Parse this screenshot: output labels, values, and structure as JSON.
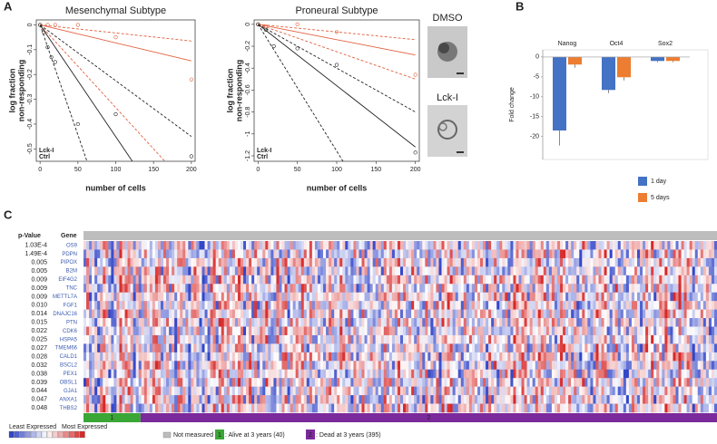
{
  "panels": [
    "A",
    "B",
    "C"
  ],
  "chart_data": [
    {
      "type": "line",
      "title": "Mesenchymal Subtype",
      "xlabel": "number of cells",
      "ylabel": [
        "log fraction",
        "non-responding"
      ],
      "xlim": [
        -5,
        205
      ],
      "ylim": [
        -0.55,
        0.02
      ],
      "xticks": [
        0,
        50,
        100,
        150,
        200
      ],
      "yticks": [
        0,
        -0.1,
        -0.2,
        -0.3,
        -0.4,
        -0.5
      ],
      "series": [
        {
          "name": "Lck-I",
          "color": "#e2603f",
          "points": {
            "x": [
              0,
              10,
              20,
              50,
              100,
              200
            ],
            "values": [
              0,
              0,
              0,
              0,
              -0.05,
              -0.22
            ]
          },
          "fits": [
            {
              "dash": false,
              "x": [
                0,
                200
              ],
              "values": [
                0,
                -0.145
              ]
            },
            {
              "dash": true,
              "x": [
                0,
                200
              ],
              "values": [
                0,
                -0.065
              ]
            },
            {
              "dash": true,
              "x": [
                0,
                165
              ],
              "values": [
                0,
                -0.55
              ]
            }
          ]
        },
        {
          "name": "Ctrl",
          "color": "#222222",
          "points": {
            "x": [
              0,
              5,
              10,
              15,
              20,
              50,
              100,
              200
            ],
            "values": [
              0,
              -0.03,
              -0.09,
              -0.13,
              -0.15,
              -0.4,
              -0.36,
              -0.53
            ]
          },
          "fits": [
            {
              "dash": false,
              "x": [
                0,
                122
              ],
              "values": [
                0,
                -0.55
              ]
            },
            {
              "dash": true,
              "x": [
                0,
                200
              ],
              "values": [
                0,
                -0.45
              ]
            },
            {
              "dash": true,
              "x": [
                0,
                62
              ],
              "values": [
                0,
                -0.55
              ]
            }
          ]
        }
      ]
    },
    {
      "type": "line",
      "title": "Proneural Subtype",
      "xlabel": "number of cells",
      "ylabel": [
        "log fraction",
        "non-responding"
      ],
      "xlim": [
        -5,
        205
      ],
      "ylim": [
        -1.25,
        0.04
      ],
      "xticks": [
        0,
        50,
        100,
        150,
        200
      ],
      "yticks": [
        0,
        -0.2,
        -0.4,
        -0.6,
        -0.8,
        -1,
        -1.2
      ],
      "series": [
        {
          "name": "Lck-I",
          "color": "#e2603f",
          "points": {
            "x": [
              0,
              10,
              50,
              100,
              200
            ],
            "values": [
              0,
              -0.02,
              0,
              -0.07,
              -0.46
            ]
          },
          "fits": [
            {
              "dash": false,
              "x": [
                0,
                200
              ],
              "values": [
                0,
                -0.28
              ]
            },
            {
              "dash": true,
              "x": [
                0,
                200
              ],
              "values": [
                0,
                -0.14
              ]
            },
            {
              "dash": true,
              "x": [
                0,
                200
              ],
              "values": [
                0,
                -0.5
              ]
            }
          ]
        },
        {
          "name": "Ctrl",
          "color": "#222222",
          "points": {
            "x": [
              0,
              10,
              20,
              50,
              100,
              200
            ],
            "values": [
              0,
              -0.05,
              -0.2,
              -0.22,
              -0.37,
              -1.17
            ]
          },
          "fits": [
            {
              "dash": false,
              "x": [
                0,
                200
              ],
              "values": [
                0,
                -1.12
              ]
            },
            {
              "dash": true,
              "x": [
                0,
                200
              ],
              "values": [
                0,
                -0.8
              ]
            },
            {
              "dash": true,
              "x": [
                0,
                108
              ],
              "values": [
                0,
                -1.25
              ]
            }
          ]
        }
      ]
    },
    {
      "type": "bar",
      "ylabel": "Fold change",
      "categories": [
        "Nanog",
        "Oct4",
        "Sox2"
      ],
      "ylim": [
        -25.8,
        1.8
      ],
      "yticks": [
        0,
        -5,
        -10,
        -15,
        -20
      ],
      "legend": "lower right",
      "series": [
        {
          "name": "1 day",
          "color": "#4472c4",
          "values": [
            -18.5,
            -8.3,
            -1.0
          ],
          "errors": [
            3.8,
            0.8,
            0.3
          ]
        },
        {
          "name": "5 days",
          "color": "#ed7d31",
          "values": [
            -1.9,
            -5.1,
            -1.0
          ],
          "errors": [
            0.8,
            0.8,
            0.3
          ]
        }
      ]
    }
  ],
  "images": [
    "DMSO",
    "Lck-I"
  ],
  "heatmap": {
    "header": [
      "p-Value",
      "Gene"
    ],
    "rows": [
      [
        "1.03E-4",
        "OS9"
      ],
      [
        "1.49E-4",
        "PDPN"
      ],
      [
        "0.005",
        "PIPOX"
      ],
      [
        "0.005",
        "B2M"
      ],
      [
        "0.009",
        "EIF4G2"
      ],
      [
        "0.009",
        "TNC"
      ],
      [
        "0.009",
        "METTL7A"
      ],
      [
        "0.010",
        "FGF1"
      ],
      [
        "0.014",
        "DNAJC16"
      ],
      [
        "0.015",
        "PTN"
      ],
      [
        "0.022",
        "CDK6"
      ],
      [
        "0.025",
        "HSPA5"
      ],
      [
        "0.027",
        "TMEM66"
      ],
      [
        "0.028",
        "CALD1"
      ],
      [
        "0.032",
        "BSCL2"
      ],
      [
        "0.038",
        "PEX1"
      ],
      [
        "0.039",
        "OBSL1"
      ],
      [
        "0.044",
        "GJA1"
      ],
      [
        "0.047",
        "ANXA1"
      ],
      [
        "0.048",
        "THBS2"
      ]
    ],
    "groups": [
      {
        "id": "1",
        "label": ": Alive at 3 years (40)",
        "color": "#3aa635"
      },
      {
        "id": "2",
        "label": ": Dead at 3 years (395)",
        "color": "#7b2a9b"
      }
    ],
    "scale": [
      "Least Expressed",
      "Most Expressed"
    ],
    "missing": "Not measured"
  }
}
